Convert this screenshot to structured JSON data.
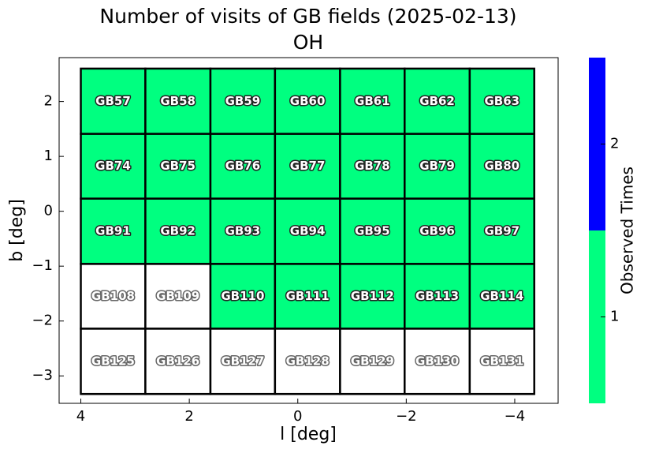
{
  "chart_data": {
    "type": "heatmap",
    "title": "Number of visits of GB fields (2025-02-13)",
    "subtitle": "OH",
    "x_label": "l [deg]",
    "y_label": "b [deg]",
    "x_edges": [
      4.0,
      2.81,
      1.61,
      0.42,
      -0.78,
      -1.97,
      -3.17,
      -4.36
    ],
    "y_edges": [
      2.6,
      1.41,
      0.23,
      -0.96,
      -2.14,
      -3.33
    ],
    "labels": [
      [
        "GB57",
        "GB58",
        "GB59",
        "GB60",
        "GB61",
        "GB62",
        "GB63"
      ],
      [
        "GB74",
        "GB75",
        "GB76",
        "GB77",
        "GB78",
        "GB79",
        "GB80"
      ],
      [
        "GB91",
        "GB92",
        "GB93",
        "GB94",
        "GB95",
        "GB96",
        "GB97"
      ],
      [
        "GB108",
        "GB109",
        "GB110",
        "GB111",
        "GB112",
        "GB113",
        "GB114"
      ],
      [
        "GB125",
        "GB126",
        "GB127",
        "GB128",
        "GB129",
        "GB130",
        "GB131"
      ]
    ],
    "values": [
      [
        1,
        1,
        1,
        1,
        1,
        1,
        1
      ],
      [
        1,
        1,
        1,
        1,
        1,
        1,
        1
      ],
      [
        1,
        1,
        1,
        1,
        1,
        1,
        1
      ],
      [
        0,
        0,
        1,
        1,
        1,
        1,
        1
      ],
      [
        0,
        0,
        0,
        0,
        0,
        0,
        0
      ]
    ],
    "empty_color": "#ffffff",
    "xlim": [
      4.4,
      -4.8
    ],
    "xticks": [
      4,
      2,
      0,
      {
        "value": -2,
        "label": "−2"
      },
      {
        "value": -4,
        "label": "−4"
      }
    ],
    "ylim": [
      -3.5,
      2.8
    ],
    "yticks": [
      2,
      1,
      0,
      {
        "value": -1,
        "label": "−1"
      },
      {
        "value": -2,
        "label": "−2"
      },
      {
        "value": -3,
        "label": "−3"
      }
    ],
    "colorbar": {
      "label": "Observed Times",
      "lim": [
        0.5,
        2.5
      ],
      "ticks": [
        1,
        2
      ],
      "colors": [
        "#00ff80",
        "#0000ff"
      ]
    }
  }
}
